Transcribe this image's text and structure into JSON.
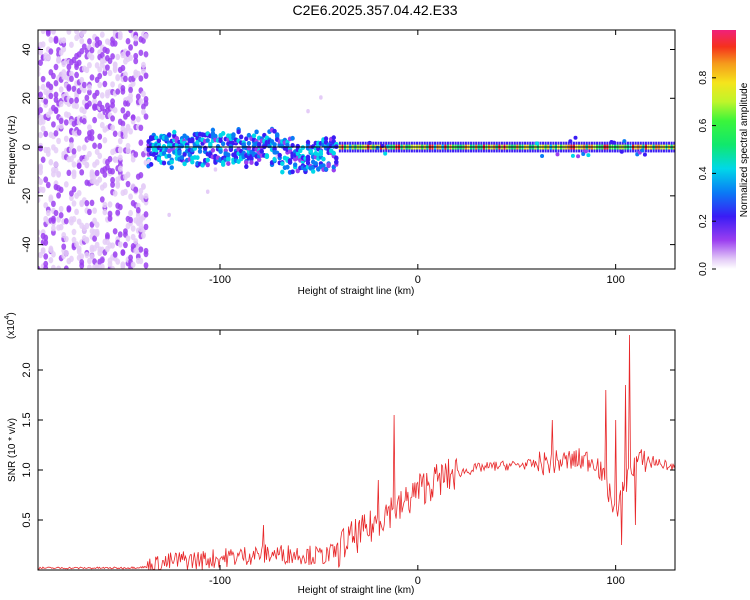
{
  "title": "C2E6.2025.357.04.42.E33",
  "colors": {
    "snr_line": "#e8282a",
    "axis": "#000000"
  },
  "chart_data": [
    {
      "type": "heatmap",
      "xlabel": "Height of straight line (km)",
      "ylabel": "Frequency (Hz)",
      "xlim": [
        -192,
        130
      ],
      "ylim": [
        -50,
        48
      ],
      "xticks": [
        -100,
        0,
        100
      ],
      "xtick_labels": [
        "-100",
        "0",
        "100"
      ],
      "yticks": [
        -40,
        -20,
        0,
        20,
        40
      ],
      "ytick_labels": [
        "-40",
        "-20",
        "0",
        "20",
        "40"
      ],
      "colorbar": {
        "label": "Normalized spectral amplitude",
        "range": [
          0,
          1
        ],
        "ticks": [
          0.0,
          0.2,
          0.4,
          0.6,
          0.8
        ],
        "tick_labels": [
          "0.0",
          "0.2",
          "0.4",
          "0.6",
          "0.8"
        ]
      },
      "centroid_line_hz": 0,
      "regions": [
        {
          "x_start": -192,
          "x_end": -137,
          "freq_spread_hz": 50,
          "amplitude": "noise 0.05-0.2"
        },
        {
          "x_start": -137,
          "x_end": -40,
          "freq_spread_hz": 8,
          "amplitude": "0.2-0.5"
        },
        {
          "x_start": -40,
          "x_end": 130,
          "freq_spread_hz": 2,
          "amplitude": "0.8-1.0"
        }
      ]
    },
    {
      "type": "line",
      "xlabel": "Height of straight line (km)",
      "ylabel": "SNR (10 * v/v)",
      "y_multiplier": "(x10",
      "y_multiplier_exp": "4",
      "y_multiplier_close": ")",
      "xlim": [
        -192,
        130
      ],
      "ylim": [
        0,
        2.4
      ],
      "xticks": [
        -100,
        0,
        100
      ],
      "xtick_labels": [
        "-100",
        "0",
        "100"
      ],
      "yticks": [
        0.5,
        1.0,
        1.5,
        2.0
      ],
      "ytick_labels": [
        "0.5",
        "1.0",
        "1.5",
        "2.0"
      ],
      "series": [
        {
          "name": "SNR",
          "x": [
            -192,
            -170,
            -150,
            -137,
            -130,
            -120,
            -110,
            -100,
            -90,
            -80,
            -70,
            -60,
            -50,
            -45,
            -40,
            -35,
            -30,
            -25,
            -20,
            -15,
            -10,
            -5,
            0,
            5,
            10,
            20,
            30,
            40,
            50,
            60,
            70,
            80,
            90,
            100,
            110,
            120,
            130
          ],
          "y": [
            0.02,
            0.02,
            0.02,
            0.03,
            0.06,
            0.1,
            0.1,
            0.12,
            0.14,
            0.16,
            0.16,
            0.16,
            0.14,
            0.15,
            0.2,
            0.3,
            0.35,
            0.4,
            0.5,
            0.6,
            0.6,
            0.7,
            0.8,
            0.85,
            0.9,
            0.97,
            1.02,
            1.04,
            1.05,
            1.06,
            1.08,
            1.1,
            1.1,
            0.6,
            1.1,
            1.08,
            1.02
          ],
          "spikes": [
            {
              "x": -78,
              "y": 0.45
            },
            {
              "x": -38,
              "y": 0.4
            },
            {
              "x": -20,
              "y": 0.9
            },
            {
              "x": -12,
              "y": 1.55
            },
            {
              "x": 68,
              "y": 1.5
            },
            {
              "x": 95,
              "y": 1.8
            },
            {
              "x": 100,
              "y": 1.5
            },
            {
              "x": 105,
              "y": 1.85
            },
            {
              "x": 107,
              "y": 2.35
            },
            {
              "x": 103,
              "y": 0.25
            },
            {
              "x": 110,
              "y": 0.45
            }
          ]
        }
      ]
    }
  ]
}
